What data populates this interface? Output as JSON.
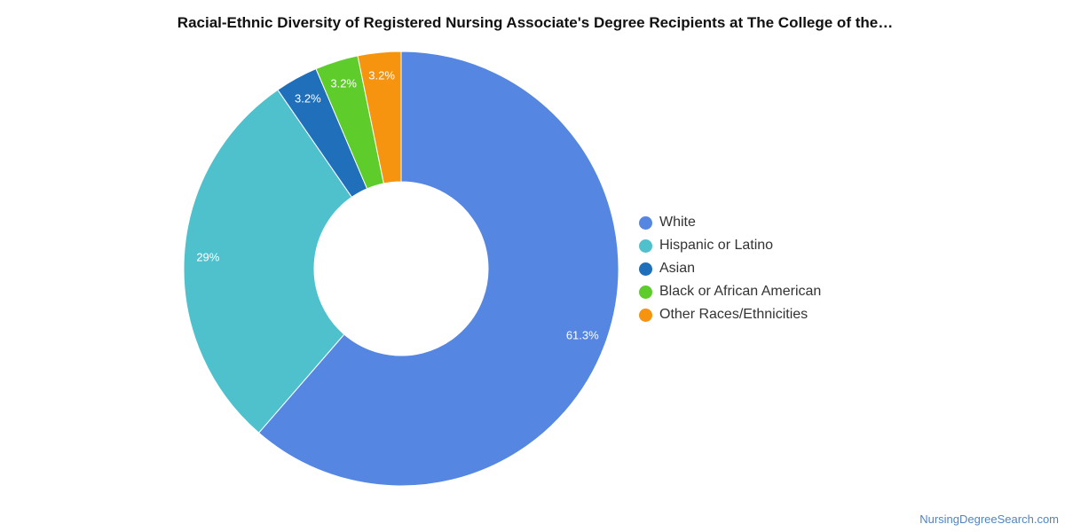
{
  "title": "Racial-Ethnic Diversity of Registered Nursing Associate's Degree Recipients at The College of the…",
  "chart_data": {
    "type": "pie",
    "donut": true,
    "legend_position": "right",
    "slices": [
      {
        "label": "White",
        "value": 61.3,
        "value_label": "61.3%",
        "color": "#5486e2"
      },
      {
        "label": "Hispanic or Latino",
        "value": 29.0,
        "value_label": "29%",
        "color": "#4fc1cd"
      },
      {
        "label": "Asian",
        "value": 3.2,
        "value_label": "3.2%",
        "color": "#1f6fba"
      },
      {
        "label": "Black or African American",
        "value": 3.2,
        "value_label": "3.2%",
        "color": "#5ecd2c"
      },
      {
        "label": "Other Races/Ethnicities",
        "value": 3.2,
        "value_label": "3.2%",
        "color": "#f7940f"
      }
    ]
  },
  "credit": "NursingDegreeSearch.com"
}
